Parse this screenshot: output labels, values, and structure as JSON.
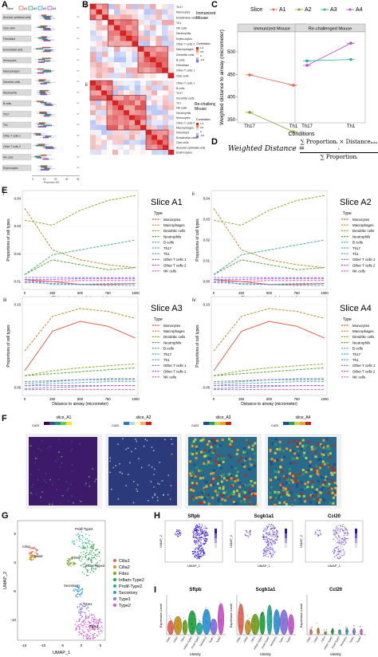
{
  "panels": {
    "A": {
      "label": "A",
      "slice_legend": [
        "Slice",
        "A1",
        "A2",
        "A3",
        "A4"
      ],
      "cell_types": [
        "Alveolar epithelial cells",
        "Club cells",
        "Fibroblast",
        "Endothelial cells",
        "Monocytes",
        "Macrophages",
        "Dendritic cells",
        "Neutrophils",
        "B cells",
        "Th17",
        "Th1",
        "Other T cells 1",
        "Other T cells 2",
        "NK cells",
        "Erythrocytes"
      ],
      "xlabel": "Proportion (%)"
    },
    "B": {
      "label": "B",
      "sub_i": "i",
      "sub_ii": "ii",
      "title_i": "Immunized Mouse",
      "title_ii": "Re-challenged Mouse",
      "colorbar_title": "Correlation",
      "colorbar_ticks": [
        "1.0",
        "0.5",
        "0",
        "-0.5"
      ],
      "rows_i": [
        "Th17",
        "Monocytes",
        "Endothelial cells",
        "Th1",
        "NK cells",
        "Neutrophils",
        "Erythrocytes",
        "Other T cells 2",
        "Macrophages",
        "Dendritic cells",
        "B cells",
        "Fibroblast",
        "Other T cells 1",
        "Club cells"
      ],
      "rows_ii": [
        "Other T cells 1",
        "B cells",
        "Th17",
        "Dendritic cells",
        "Th1",
        "NK cells",
        "Neutrophils",
        "Monocytes",
        "Other T cells 2",
        "Macrophages",
        "Fibroblast",
        "Endothelial cells",
        "Club cells",
        "Alveolar epithelial cells",
        "Erythrocytes"
      ]
    },
    "C": {
      "label": "C",
      "legend_title": "Slice",
      "legend_items": [
        "A1",
        "A2",
        "A3",
        "A4"
      ],
      "facet_left": "Immunized Mouse",
      "facet_right": "Re-challenged Mouse",
      "ylabel": "Weighted distance to airway (micrometer)",
      "xlabel": "Conditions",
      "yticks": [
        "500",
        "450",
        "400",
        "350"
      ],
      "xticks": [
        "Th17",
        "Th1",
        "Th17",
        "Th1"
      ]
    },
    "D": {
      "label": "D",
      "formula_lhs": "Weighted Distance =",
      "formula_num": "∑ Proportionᵢ × Distanceₘᵢₙ ᵢ",
      "formula_den": "∑ Proportionᵢ",
      "sum_upper": "n",
      "sum_lower": "i=1"
    },
    "E": {
      "label": "E",
      "legend_title": "Type",
      "types": [
        "Monocytes",
        "Macrophages",
        "Dendritic cells",
        "Neutrophils",
        "B cells",
        "Th17",
        "Th1",
        "Other T cells 1",
        "Other T cells 2",
        "NK cells"
      ],
      "type_colors": [
        "#e24a33",
        "#b5821b",
        "#8aa21a",
        "#4a9a2a",
        "#38a67a",
        "#3aa7b0",
        "#4a8ad8",
        "#7a6ae0",
        "#c04ad8",
        "#e04aa8"
      ],
      "xlabel": "Distance to airway (micrometer)",
      "ylabel": "Proportions of cell types",
      "xticks": [
        "0",
        "250",
        "500",
        "750",
        "1000"
      ],
      "subplots": [
        {
          "roman": "i",
          "title": "Slice A1",
          "yticks": [
            "0.04",
            "0.03",
            "0.02",
            "0.01"
          ]
        },
        {
          "roman": "ii",
          "title": "Slice A2",
          "yticks": [
            "0.04",
            "0.03",
            "0.02",
            "0.01",
            "0.00"
          ]
        },
        {
          "roman": "iii",
          "title": "Slice A3",
          "yticks": [
            "0.10",
            "0.05"
          ]
        },
        {
          "roman": "iv",
          "title": "Slice A4",
          "yticks": [
            "0.10",
            "0.05"
          ]
        }
      ]
    },
    "F": {
      "label": "F",
      "slices": [
        "slice_A1",
        "slice_A2",
        "slice_A3",
        "slice_A4"
      ],
      "gene": "Ccl20",
      "ticks_a": [
        "0.0",
        "0.5",
        "1.0",
        "1.5",
        "2.0"
      ],
      "ticks_c": [
        "1",
        "2",
        "3"
      ]
    },
    "G": {
      "label": "G",
      "xlabel": "UMAP_1",
      "ylabel": "UMAP_2",
      "clusters": [
        "Cilia1",
        "Cilia2",
        "Fibro",
        "Inflam-Type2",
        "Prolif-Type2",
        "Secretory",
        "Type1",
        "Type2"
      ],
      "cluster_colors": [
        "#e8695c",
        "#c99a2a",
        "#7aa62a",
        "#2aa84a",
        "#2ab0a0",
        "#3a9ad8",
        "#8a7ae0",
        "#d05ad0"
      ],
      "xticks": [
        "-15",
        "-10",
        "-5",
        "0",
        "5"
      ],
      "yticks": [
        "5",
        "0",
        "-5",
        "-10"
      ]
    },
    "H": {
      "label": "H",
      "genes": [
        "Sftpb",
        "Scgb1a1",
        "Ccl20"
      ],
      "xlabel": "UMAP_1",
      "ylabel": "UMAP_2"
    },
    "I": {
      "label": "I",
      "genes": [
        "Sftpb",
        "Scgb1a1",
        "Ccl20"
      ],
      "xlabel": "Identity",
      "ylabel": "Expression Level",
      "identities": [
        "Cilia1",
        "Cilia2",
        "Fibro",
        "Inflam-Type2",
        "Prolif-Type2",
        "Secretory",
        "Type1",
        "Type2"
      ]
    }
  }
}
